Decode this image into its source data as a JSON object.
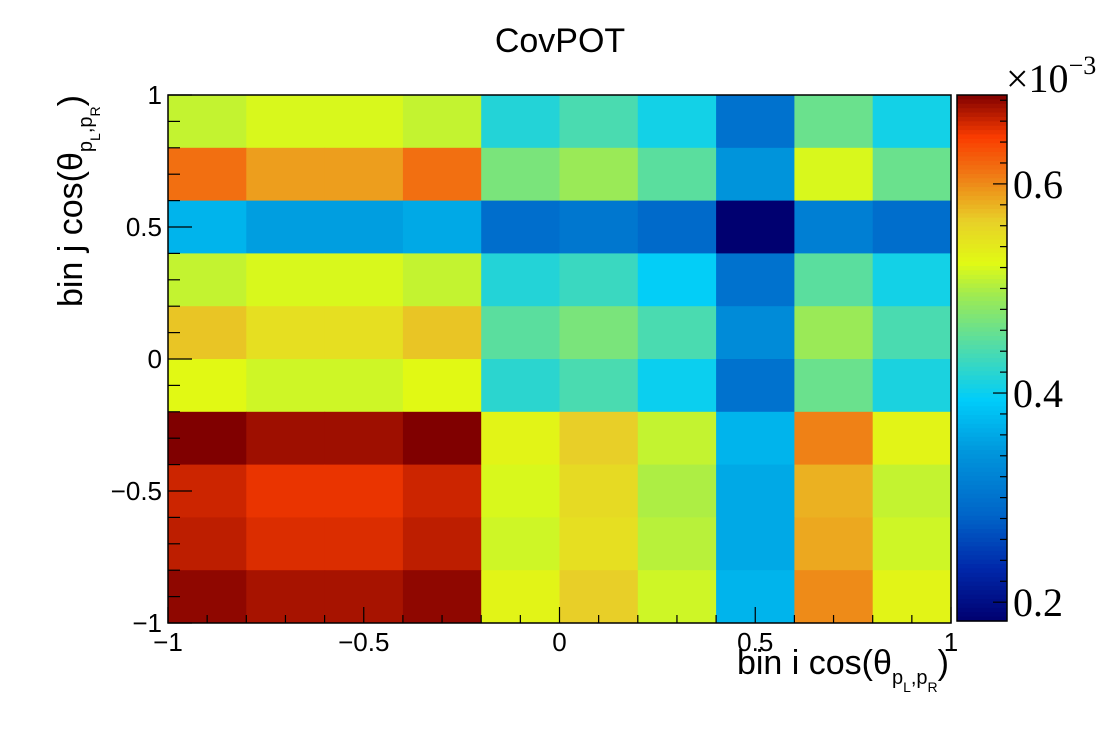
{
  "chart_data": {
    "type": "heatmap",
    "title": "CovPOT",
    "xlabel": {
      "prefix": "bin i cos(",
      "theta": "θ",
      "sub1": "p",
      "sub1_index": "L",
      "sep": ",",
      "sub2": "p",
      "sub2_index": "R",
      "suffix": ")"
    },
    "ylabel": {
      "prefix": "bin j cos(",
      "theta": "θ",
      "sub1": "p",
      "sub1_index": "L",
      "sep": ",",
      "sub2": "p",
      "sub2_index": "R",
      "suffix": ")"
    },
    "xlim": [
      -1,
      1
    ],
    "ylim": [
      -1,
      1
    ],
    "x_bin_edges": [
      -1,
      -0.8,
      -0.6,
      -0.4,
      -0.2,
      0,
      0.2,
      0.4,
      0.6,
      0.8,
      1
    ],
    "y_bin_edges": [
      -1,
      -0.8,
      -0.6,
      -0.4,
      -0.2,
      0,
      0.2,
      0.4,
      0.6,
      0.8,
      1
    ],
    "x_ticks": [
      {
        "value": -1,
        "label": "−1"
      },
      {
        "value": -0.5,
        "label": "−0.5"
      },
      {
        "value": 0,
        "label": "0"
      },
      {
        "value": 0.5,
        "label": "0.5"
      },
      {
        "value": 1,
        "label": "1"
      }
    ],
    "y_ticks": [
      {
        "value": -1,
        "label": "−1"
      },
      {
        "value": -0.5,
        "label": "−0.5"
      },
      {
        "value": 0,
        "label": "0"
      },
      {
        "value": 0.5,
        "label": "0.5"
      },
      {
        "value": 1,
        "label": "1"
      }
    ],
    "z_range": [
      0.000182,
      0.000685
    ],
    "z_ticks": [
      {
        "value": 0.0002,
        "label": "0.2"
      },
      {
        "value": 0.0004,
        "label": "0.4"
      },
      {
        "value": 0.0006,
        "label": "0.6"
      }
    ],
    "z_multiplier": {
      "base": "×10",
      "exponent": "−3"
    },
    "colormap": "rainbow",
    "values_rows_top_to_bottom": [
      [
        0.00051,
        0.00052,
        0.00052,
        0.00051,
        0.000415,
        0.00044,
        0.000405,
        0.0003,
        0.00046,
        0.000405
      ],
      [
        0.000615,
        0.00059,
        0.00059,
        0.000615,
        0.00047,
        0.00049,
        0.00045,
        0.00034,
        0.00052,
        0.00046
      ],
      [
        0.00037,
        0.00035,
        0.00035,
        0.00036,
        0.000295,
        0.000305,
        0.00029,
        0.000182,
        0.000315,
        0.000295
      ],
      [
        0.00051,
        0.00052,
        0.00052,
        0.00051,
        0.000415,
        0.00043,
        0.000395,
        0.0003,
        0.00045,
        0.000405
      ],
      [
        0.00057,
        0.00055,
        0.00055,
        0.00057,
        0.00045,
        0.00047,
        0.00044,
        0.00033,
        0.00049,
        0.00044
      ],
      [
        0.000525,
        0.000515,
        0.000515,
        0.000525,
        0.00042,
        0.00044,
        0.0004,
        0.0003,
        0.00046,
        0.00041
      ],
      [
        0.000685,
        0.000675,
        0.000675,
        0.000685,
        0.00053,
        0.000565,
        0.00051,
        0.00037,
        0.000605,
        0.00053
      ],
      [
        0.00066,
        0.00065,
        0.00065,
        0.00066,
        0.00052,
        0.000555,
        0.0005,
        0.00036,
        0.00058,
        0.00051
      ],
      [
        0.000665,
        0.000655,
        0.000655,
        0.000665,
        0.000515,
        0.00055,
        0.000505,
        0.00036,
        0.000585,
        0.000515
      ],
      [
        0.00068,
        0.000672,
        0.000672,
        0.00068,
        0.00053,
        0.000565,
        0.000515,
        0.00037,
        0.0006,
        0.00053
      ]
    ]
  }
}
